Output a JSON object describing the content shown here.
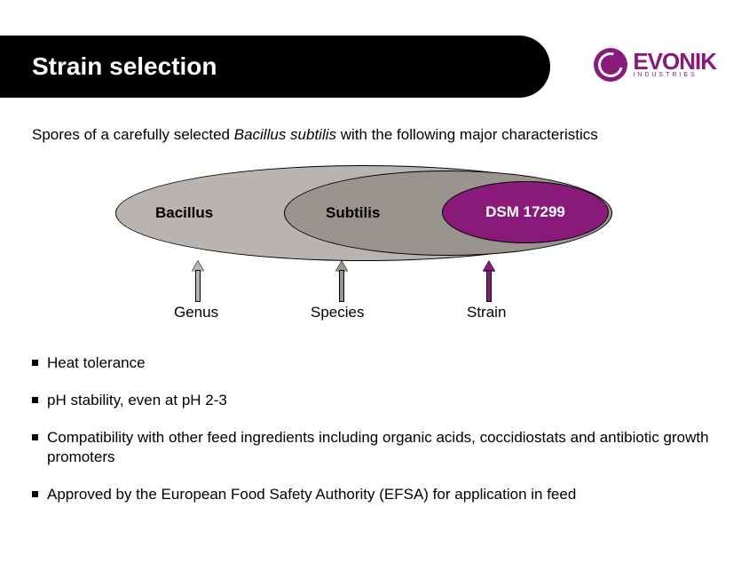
{
  "header": {
    "title": "Strain selection"
  },
  "logo": {
    "brand": "EVONIK",
    "sub": "INDUSTRIES"
  },
  "intro": {
    "prefix": "Spores of a carefully selected ",
    "italic": "Bacillus subtilis",
    "suffix": " with the following major characteristics"
  },
  "diagram": {
    "type": "nested-ellipse",
    "ellipses": [
      {
        "label": "Bacillus",
        "fill": "#b9b4b0",
        "text": "#000000"
      },
      {
        "label": "Subtilis",
        "fill": "#9a948f",
        "text": "#000000"
      },
      {
        "label": "DSM 17299",
        "fill": "#8a1a7a",
        "text": "#ffffff"
      }
    ],
    "arrows": [
      {
        "label": "Genus",
        "fill": "#b9b4b0"
      },
      {
        "label": "Species",
        "fill": "#9a948f"
      },
      {
        "label": "Strain",
        "fill": "#8a1a7a"
      }
    ]
  },
  "bullets": [
    "Heat tolerance",
    "pH stability, even at pH 2-3",
    "Compatibility with other feed ingredients including organic acids, coccidiostats and antibiotic growth promoters",
    "Approved by the European Food Safety Authority (EFSA) for application in feed"
  ],
  "colors": {
    "brand_purple": "#8a1a7a",
    "gray_light": "#b9b4b0",
    "gray_mid": "#9a948f",
    "black": "#000000",
    "white": "#ffffff"
  },
  "typography": {
    "title_fontsize": 28,
    "body_fontsize": 17,
    "font_family": "Arial"
  }
}
